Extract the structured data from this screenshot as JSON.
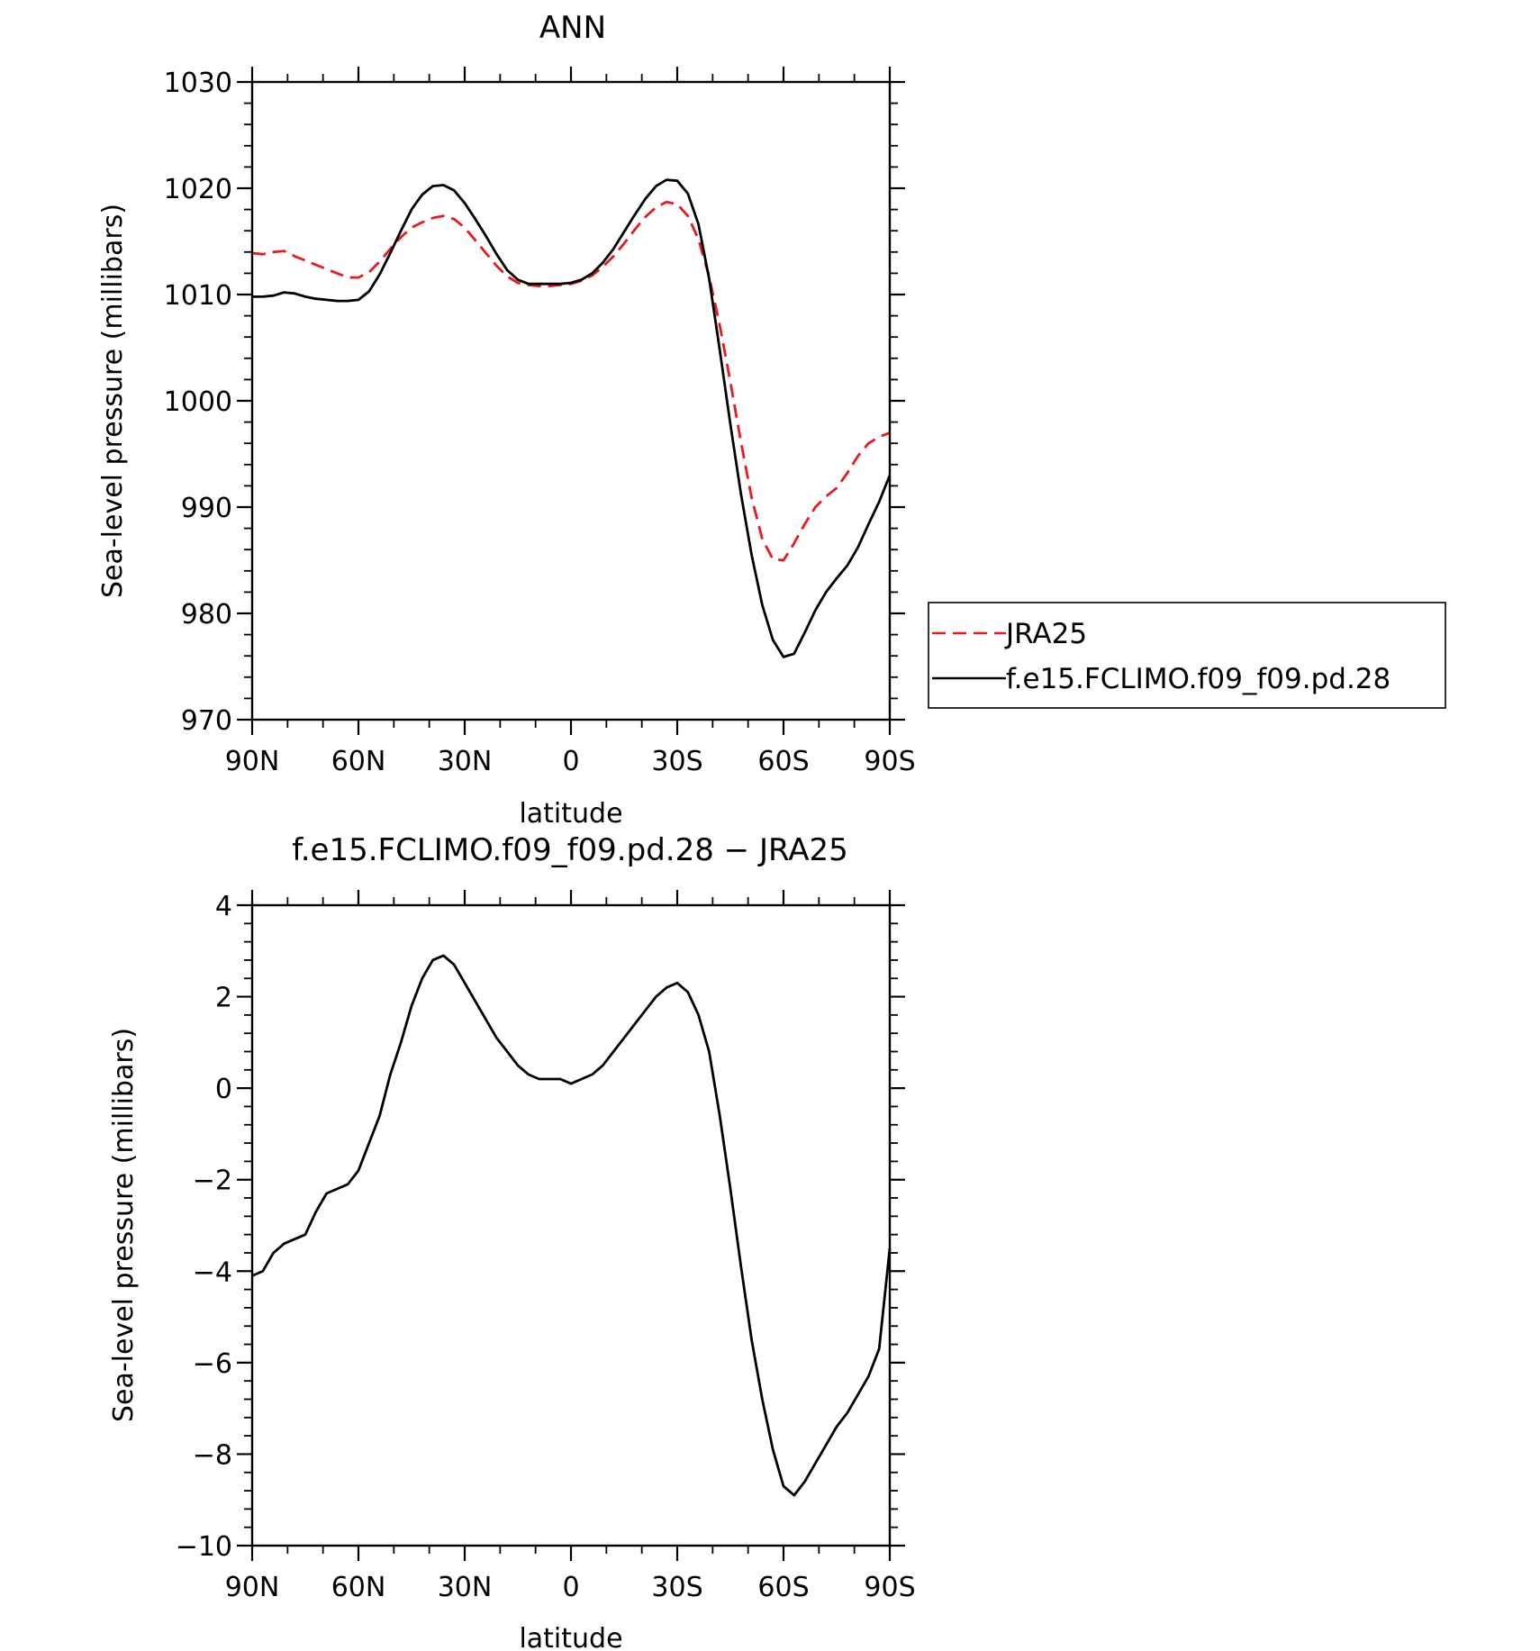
{
  "chart_data": [
    {
      "type": "line",
      "title": "ANN",
      "xlabel": "latitude",
      "ylabel": "Sea-level pressure (millibars)",
      "xlim": [
        90,
        -90
      ],
      "ylim": [
        970,
        1030
      ],
      "x_ticks": [
        {
          "value": 90,
          "label": "90N"
        },
        {
          "value": 60,
          "label": "60N"
        },
        {
          "value": 30,
          "label": "30N"
        },
        {
          "value": 0,
          "label": "0"
        },
        {
          "value": -30,
          "label": "30S"
        },
        {
          "value": -60,
          "label": "60S"
        },
        {
          "value": -90,
          "label": "90S"
        }
      ],
      "y_ticks": [
        {
          "value": 1030,
          "label": "1030"
        },
        {
          "value": 1020,
          "label": "1020"
        },
        {
          "value": 1010,
          "label": "1010"
        },
        {
          "value": 1000,
          "label": "1000"
        },
        {
          "value": 990,
          "label": "990"
        },
        {
          "value": 980,
          "label": "980"
        },
        {
          "value": 970,
          "label": "970"
        }
      ],
      "legend_position": "right",
      "series": [
        {
          "name": "JRA25",
          "color": "#e8191f",
          "dash": "dashed",
          "x": [
            90,
            87,
            84,
            81,
            78,
            75,
            72,
            69,
            66,
            63,
            60,
            57,
            54,
            51,
            48,
            45,
            42,
            39,
            36,
            33,
            30,
            27,
            24,
            21,
            18,
            15,
            12,
            9,
            6,
            3,
            0,
            -3,
            -6,
            -9,
            -12,
            -15,
            -18,
            -21,
            -24,
            -27,
            -30,
            -33,
            -36,
            -39,
            -42,
            -45,
            -48,
            -51,
            -54,
            -57,
            -60,
            -63,
            -66,
            -69,
            -72,
            -75,
            -78,
            -81,
            -84,
            -87,
            -90
          ],
          "y": [
            1013.9,
            1013.8,
            1014.0,
            1014.1,
            1013.6,
            1013.2,
            1012.8,
            1012.4,
            1012.0,
            1011.6,
            1011.6,
            1012.1,
            1013.1,
            1014.3,
            1015.4,
            1016.3,
            1016.8,
            1017.2,
            1017.4,
            1017.1,
            1016.3,
            1015.1,
            1013.9,
            1012.7,
            1011.7,
            1011.1,
            1010.9,
            1010.8,
            1010.8,
            1010.9,
            1011.0,
            1011.3,
            1011.8,
            1012.6,
            1013.6,
            1014.8,
            1016.1,
            1017.3,
            1018.2,
            1018.7,
            1018.5,
            1017.4,
            1015.2,
            1011.7,
            1007.1,
            1001.8,
            996.1,
            990.9,
            987.0,
            985.1,
            985.0,
            986.6,
            988.4,
            990.0,
            991.0,
            991.8,
            993.2,
            994.8,
            996.0,
            996.6,
            997.0
          ]
        },
        {
          "name": "f.e15.FCLIMO.f09_f09.pd.28",
          "color": "#000000",
          "dash": "solid",
          "x": [
            90,
            87,
            84,
            81,
            78,
            75,
            72,
            69,
            66,
            63,
            60,
            57,
            54,
            51,
            48,
            45,
            42,
            39,
            36,
            33,
            30,
            27,
            24,
            21,
            18,
            15,
            12,
            9,
            6,
            3,
            0,
            -3,
            -6,
            -9,
            -12,
            -15,
            -18,
            -21,
            -24,
            -27,
            -30,
            -33,
            -36,
            -39,
            -42,
            -45,
            -48,
            -51,
            -54,
            -57,
            -60,
            -63,
            -66,
            -69,
            -72,
            -75,
            -78,
            -81,
            -84,
            -87,
            -90
          ],
          "y": [
            1009.8,
            1009.8,
            1009.9,
            1010.2,
            1010.1,
            1009.8,
            1009.6,
            1009.5,
            1009.4,
            1009.4,
            1009.5,
            1010.3,
            1011.9,
            1013.9,
            1016.0,
            1018.0,
            1019.4,
            1020.2,
            1020.3,
            1019.8,
            1018.6,
            1017.1,
            1015.5,
            1013.8,
            1012.3,
            1011.4,
            1011.0,
            1011.0,
            1011.0,
            1011.0,
            1011.1,
            1011.4,
            1012.0,
            1013.0,
            1014.3,
            1015.9,
            1017.5,
            1019.0,
            1020.2,
            1020.8,
            1020.7,
            1019.5,
            1016.6,
            1011.5,
            1004.8,
            997.8,
            991.2,
            985.5,
            980.8,
            977.5,
            975.9,
            976.2,
            978.2,
            980.3,
            982.0,
            983.3,
            984.5,
            986.2,
            988.4,
            990.5,
            993.0
          ]
        }
      ]
    },
    {
      "type": "line",
      "title": "f.e15.FCLIMO.f09_f09.pd.28 − JRA25",
      "xlabel": "latitude",
      "ylabel": "Sea-level pressure (millibars)",
      "xlim": [
        90,
        -90
      ],
      "ylim": [
        -10,
        4
      ],
      "x_ticks": [
        {
          "value": 90,
          "label": "90N"
        },
        {
          "value": 60,
          "label": "60N"
        },
        {
          "value": 30,
          "label": "30N"
        },
        {
          "value": 0,
          "label": "0"
        },
        {
          "value": -30,
          "label": "30S"
        },
        {
          "value": -60,
          "label": "60S"
        },
        {
          "value": -90,
          "label": "90S"
        }
      ],
      "y_ticks": [
        {
          "value": 4,
          "label": "4"
        },
        {
          "value": 2,
          "label": "2"
        },
        {
          "value": 0,
          "label": "0"
        },
        {
          "value": -2,
          "label": "−2"
        },
        {
          "value": -4,
          "label": "−4"
        },
        {
          "value": -6,
          "label": "−6"
        },
        {
          "value": -8,
          "label": "−8"
        },
        {
          "value": -10,
          "label": "−10"
        }
      ],
      "series": [
        {
          "color": "#000000",
          "dash": "solid",
          "x": [
            90,
            87,
            84,
            81,
            78,
            75,
            72,
            69,
            66,
            63,
            60,
            57,
            54,
            51,
            48,
            45,
            42,
            39,
            36,
            33,
            30,
            27,
            24,
            21,
            18,
            15,
            12,
            9,
            6,
            3,
            0,
            -3,
            -6,
            -9,
            -12,
            -15,
            -18,
            -21,
            -24,
            -27,
            -30,
            -33,
            -36,
            -39,
            -42,
            -45,
            -48,
            -51,
            -54,
            -57,
            -60,
            -63,
            -66,
            -69,
            -72,
            -75,
            -78,
            -81,
            -84,
            -87,
            -90
          ],
          "y": [
            -4.1,
            -4.0,
            -3.6,
            -3.4,
            -3.3,
            -3.2,
            -2.7,
            -2.3,
            -2.2,
            -2.1,
            -1.8,
            -1.2,
            -0.6,
            0.3,
            1.0,
            1.8,
            2.4,
            2.8,
            2.9,
            2.7,
            2.3,
            1.9,
            1.5,
            1.1,
            0.8,
            0.5,
            0.3,
            0.2,
            0.2,
            0.2,
            0.1,
            0.2,
            0.3,
            0.5,
            0.8,
            1.1,
            1.4,
            1.7,
            2.0,
            2.2,
            2.3,
            2.1,
            1.6,
            0.8,
            -0.6,
            -2.2,
            -3.9,
            -5.5,
            -6.8,
            -7.9,
            -8.7,
            -8.9,
            -8.6,
            -8.2,
            -7.8,
            -7.4,
            -7.1,
            -6.7,
            -6.3,
            -5.7,
            -3.5
          ]
        }
      ]
    }
  ]
}
